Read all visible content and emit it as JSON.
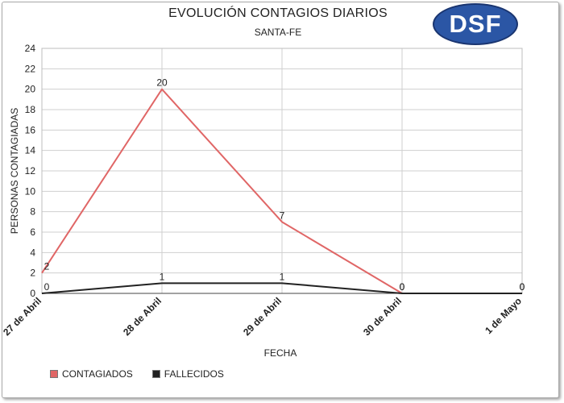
{
  "chart_data": {
    "type": "line",
    "title": "EVOLUCIÓN CONTAGIOS DIARIOS",
    "subtitle": "SANTA-FE",
    "logo_text": "DSF",
    "xlabel": "FECHA",
    "ylabel": "PERSONAS CONTAGIADAS",
    "categories": [
      "27 de Abril",
      "28 de Abril",
      "29 de Abril",
      "30 de Abril",
      "1 de Mayo"
    ],
    "ylim": [
      0,
      24
    ],
    "yticks": [
      0,
      2,
      4,
      6,
      8,
      10,
      12,
      14,
      16,
      18,
      20,
      22,
      24
    ],
    "grid": true,
    "legend_position": "bottom-left",
    "series": [
      {
        "name": "CONTAGIADOS",
        "color": "#e06666",
        "values": [
          2,
          20,
          7,
          0,
          0
        ]
      },
      {
        "name": "FALLECIDOS",
        "color": "#222222",
        "values": [
          0,
          1,
          1,
          0,
          0
        ]
      }
    ],
    "logo_color": "#2b56a5"
  }
}
